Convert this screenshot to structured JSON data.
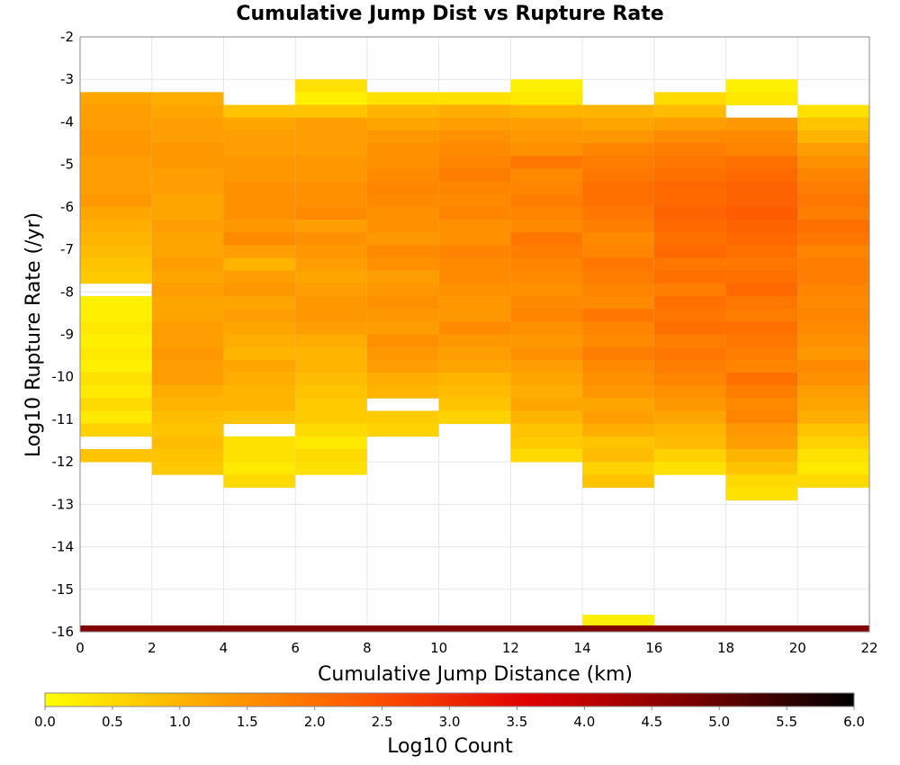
{
  "chart_data": {
    "type": "heatmap",
    "title": "Cumulative Jump Dist vs Rupture Rate",
    "xlabel": "Cumulative Jump Distance (km)",
    "ylabel": "Log10 Rupture Rate (/yr)",
    "xlim": [
      0,
      22
    ],
    "ylim": [
      -16,
      -2
    ],
    "x_ticks": [
      "0",
      "2",
      "4",
      "6",
      "8",
      "10",
      "12",
      "14",
      "16",
      "18",
      "20",
      "22"
    ],
    "y_ticks": [
      "-2",
      "-3",
      "-4",
      "-5",
      "-6",
      "-7",
      "-8",
      "-9",
      "-10",
      "-11",
      "-12",
      "-13",
      "-14",
      "-15",
      "-16"
    ],
    "x_bin_width": 2,
    "y_bin_height": 0.3,
    "grid": true,
    "colorbar": {
      "label": "Log10 Count",
      "range": [
        0.0,
        6.0
      ],
      "ticks": [
        "0.0",
        "0.5",
        "1.0",
        "1.5",
        "2.0",
        "2.5",
        "3.0",
        "3.5",
        "4.0",
        "4.5",
        "5.0",
        "5.5",
        "6.0"
      ],
      "colors": [
        "#ffff00",
        "#ffa500",
        "#ff5500",
        "#e00000",
        "#7a0000",
        "#000000"
      ]
    },
    "columns": [
      {
        "x": 1,
        "y_top": -3.3,
        "values": [
          1.2,
          1.3,
          1.3,
          1.4,
          1.4,
          1.3,
          1.3,
          1.3,
          1.4,
          1.2,
          1.1,
          1.0,
          0.9,
          0.8,
          0.7,
          null,
          0.2,
          0.2,
          0.3,
          0.2,
          0.3,
          0.2,
          0.4,
          0.3,
          0.5,
          0.3,
          0.6,
          null,
          0.8
        ]
      },
      {
        "x": 3,
        "y_top": -3.3,
        "values": [
          1.1,
          1.2,
          1.3,
          1.3,
          1.4,
          1.4,
          1.3,
          1.3,
          1.2,
          1.2,
          1.3,
          1.2,
          1.2,
          1.3,
          1.2,
          1.3,
          1.2,
          1.2,
          1.3,
          1.3,
          1.4,
          1.3,
          1.3,
          1.1,
          1.0,
          0.9,
          0.8,
          0.9,
          0.8,
          0.7
        ]
      },
      {
        "x": 5,
        "y_top": -3.6,
        "values": [
          0.8,
          1.2,
          1.3,
          1.3,
          1.4,
          1.4,
          1.5,
          1.5,
          1.5,
          1.4,
          1.6,
          1.3,
          1.0,
          1.3,
          1.4,
          1.2,
          1.3,
          1.2,
          1.1,
          1.0,
          1.2,
          1.1,
          1.0,
          1.0,
          0.8,
          null,
          0.4,
          0.4,
          0.3,
          0.5
        ]
      },
      {
        "x": 7,
        "y_top": -3.0,
        "values": [
          0.4,
          0.2,
          0.8,
          1.3,
          1.3,
          1.3,
          1.4,
          1.4,
          1.5,
          1.5,
          1.6,
          1.3,
          1.5,
          1.4,
          1.3,
          1.2,
          1.3,
          1.4,
          1.4,
          1.3,
          1.1,
          1.0,
          1.0,
          0.9,
          0.8,
          0.7,
          0.7,
          0.5,
          0.3,
          0.5,
          0.4
        ]
      },
      {
        "x": 9,
        "y_top": -3.3,
        "values": [
          0.4,
          1.0,
          1.2,
          1.4,
          1.5,
          1.5,
          1.6,
          1.7,
          1.6,
          1.5,
          1.5,
          1.4,
          1.6,
          1.5,
          1.3,
          1.4,
          1.5,
          1.4,
          1.3,
          1.5,
          1.4,
          1.3,
          1.1,
          1.0,
          null,
          0.7,
          0.6
        ]
      },
      {
        "x": 11,
        "y_top": -3.3,
        "values": [
          0.4,
          1.1,
          1.3,
          1.5,
          1.6,
          1.7,
          1.8,
          1.7,
          1.6,
          1.7,
          1.5,
          1.5,
          1.7,
          1.6,
          1.6,
          1.5,
          1.4,
          1.4,
          1.6,
          1.4,
          1.3,
          1.2,
          1.0,
          0.9,
          0.8,
          0.6
        ]
      },
      {
        "x": 13,
        "y_top": -3.0,
        "values": [
          0.2,
          0.3,
          1.0,
          1.3,
          1.4,
          1.5,
          1.9,
          1.6,
          1.7,
          1.8,
          1.7,
          1.6,
          1.9,
          1.8,
          1.7,
          1.6,
          1.5,
          1.6,
          1.7,
          1.5,
          1.4,
          1.5,
          1.3,
          1.2,
          1.1,
          1.2,
          1.0,
          0.8,
          0.7,
          0.5
        ]
      },
      {
        "x": 15,
        "y_top": -3.6,
        "values": [
          1.0,
          1.2,
          1.4,
          1.7,
          1.8,
          1.9,
          2.0,
          2.0,
          1.9,
          1.8,
          1.6,
          1.7,
          1.9,
          1.8,
          1.7,
          1.6,
          1.9,
          1.7,
          1.6,
          1.8,
          1.6,
          1.5,
          1.4,
          1.2,
          1.3,
          1.1,
          0.8,
          0.9,
          0.6,
          0.8,
          null,
          null,
          null,
          null,
          null,
          null,
          null,
          null,
          null,
          null,
          0.2
        ]
      },
      {
        "x": 17,
        "y_top": -3.3,
        "values": [
          0.5,
          0.9,
          1.3,
          1.6,
          1.8,
          1.9,
          2.0,
          2.1,
          2.1,
          2.2,
          2.1,
          2.0,
          2.1,
          1.9,
          2.0,
          1.8,
          2.0,
          1.9,
          2.0,
          1.8,
          1.9,
          1.8,
          1.7,
          1.5,
          1.4,
          1.2,
          1.0,
          0.9,
          0.6,
          0.4
        ]
      },
      {
        "x": 19,
        "y_top": -3.0,
        "values": [
          0.2,
          0.3,
          null,
          1.4,
          1.6,
          1.7,
          2.0,
          2.1,
          2.2,
          2.2,
          2.3,
          2.2,
          2.1,
          2.0,
          1.9,
          2.0,
          2.1,
          1.9,
          1.8,
          2.0,
          1.9,
          1.8,
          1.7,
          2.0,
          1.8,
          1.6,
          1.7,
          1.4,
          1.3,
          1.0,
          0.8,
          0.5,
          0.4
        ]
      },
      {
        "x": 21,
        "y_top": -3.6,
        "values": [
          0.4,
          0.8,
          1.0,
          1.3,
          1.5,
          1.7,
          1.8,
          1.9,
          1.8,
          2.0,
          1.9,
          1.7,
          1.8,
          1.8,
          1.7,
          1.6,
          1.7,
          1.6,
          1.5,
          1.4,
          1.6,
          1.5,
          1.3,
          1.2,
          1.1,
          0.8,
          0.6,
          0.4,
          0.3,
          0.5
        ]
      }
    ],
    "bottom_band": {
      "y_from": -16.0,
      "y_to": -15.85,
      "value": 4.7
    }
  }
}
